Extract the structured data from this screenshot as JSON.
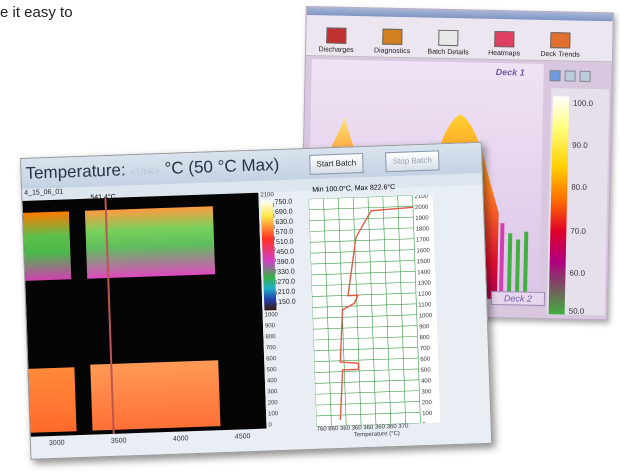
{
  "intro_text": "e it easy to",
  "back_window": {
    "toolbar": [
      {
        "label": "Discharges",
        "icon": "discharges-icon",
        "color": "#c03030"
      },
      {
        "label": "Diagnostics",
        "icon": "diagnostics-icon",
        "color": "#d08020"
      },
      {
        "label": "Batch Details",
        "icon": "batch-details-icon",
        "color": "#808080"
      },
      {
        "label": "Heatmaps",
        "icon": "heatmaps-icon",
        "color": "#e04060"
      },
      {
        "label": "Deck Trends",
        "icon": "deck-trends-icon",
        "color": "#e07030"
      }
    ],
    "deck1": "Deck 1",
    "deck2": "Deck 2",
    "scale": [
      "100.0",
      "90.0",
      "80.0",
      "70.0",
      "60.0",
      "50.0"
    ]
  },
  "front_window": {
    "title_prefix": "Temperature:",
    "title_unknown": "<Unk>",
    "title_suffix": "°C  (50 °C Max)",
    "start_button": "Start Batch",
    "stop_button": "Stop Batch",
    "batch_id": "4_15_06_01",
    "marker_value": "541.4°C",
    "min_max": "Min 100.0°C, Max 822.6°C",
    "depth_ticks": [
      "2100",
      "2000",
      "1900",
      "1800",
      "1700",
      "1600",
      "1500",
      "1400",
      "1300",
      "1200",
      "1100",
      "1000",
      "900",
      "800",
      "700",
      "600",
      "500",
      "400",
      "300",
      "200",
      "100",
      "0"
    ],
    "legend_values": [
      "750.0",
      "690.0",
      "630.0",
      "570.0",
      "510.0",
      "450.0",
      "390.0",
      "330.0",
      "270.0",
      "210.0",
      "150.0"
    ],
    "x_ticks": [
      "3000",
      "3500",
      "4000",
      "4500"
    ],
    "profile_x_ticks": "760 860 360 360 360 360 360 370",
    "profile_x_title": "Temperature (°C)",
    "profile_y_ticks": [
      "2100",
      "2000",
      "1900",
      "1800",
      "1700",
      "1600",
      "1500",
      "1400",
      "1300",
      "1200",
      "1100",
      "1000",
      "900",
      "800",
      "700",
      "600",
      "500",
      "400",
      "300",
      "200",
      "100",
      "0"
    ]
  }
}
